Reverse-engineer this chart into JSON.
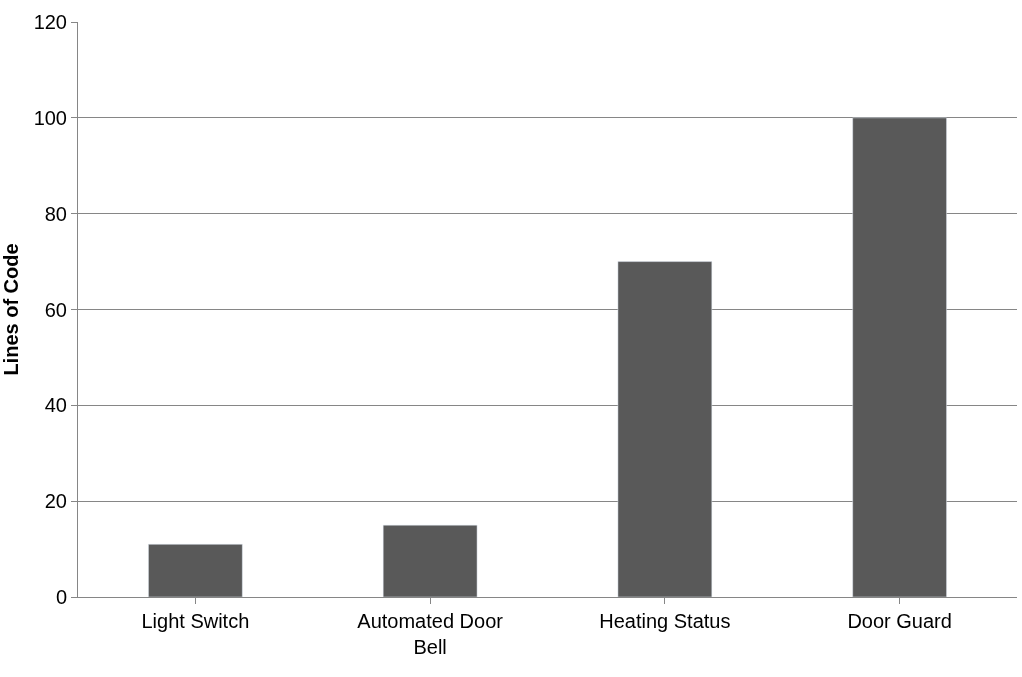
{
  "chart_data": {
    "type": "bar",
    "ylabel": "Lines of Code",
    "categories": [
      "Light Switch",
      "Automated Door Bell",
      "Heating Status",
      "Door Guard"
    ],
    "values": [
      11,
      15,
      70,
      100
    ],
    "color": "#595959",
    "ylim": [
      0,
      120
    ],
    "yticks": [
      0,
      20,
      40,
      60,
      80,
      100,
      120
    ],
    "grid": "y"
  }
}
